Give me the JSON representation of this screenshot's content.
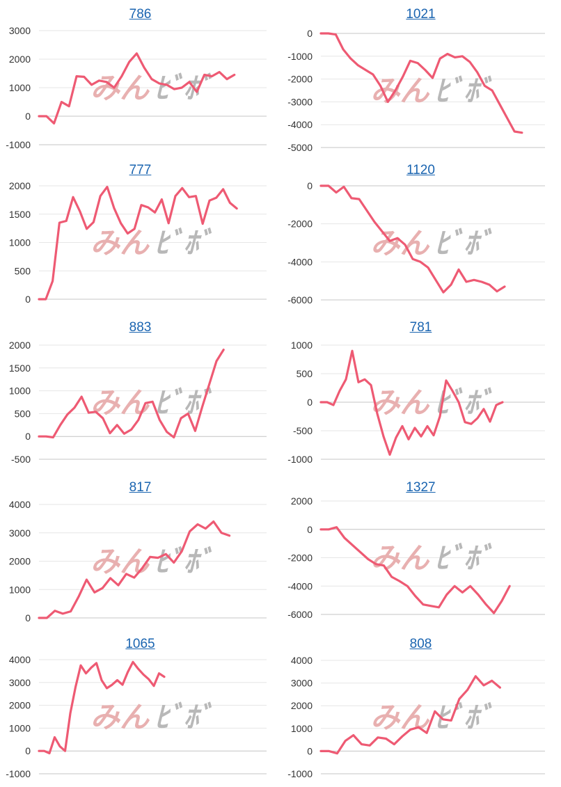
{
  "page": {
    "background": "#ffffff",
    "title_color": "#1a64b0"
  },
  "watermark": {
    "left": "みん",
    "right": "ﾋﾞﾎﾞ",
    "left_color": "#e8b0b0",
    "right_color": "#b8b8b8"
  },
  "chart_data": [
    {
      "type": "line",
      "title": "786",
      "ylim": [
        -1000,
        3000
      ],
      "y_ticks": [
        "3000",
        "2000",
        "1000",
        "0",
        "-1000"
      ],
      "series": [
        {
          "color": "#ee5a73",
          "values": [
            0,
            0,
            -250,
            500,
            350,
            1400,
            1380,
            1100,
            1250,
            1200,
            1000,
            1400,
            1900,
            2200,
            1700,
            1300,
            1150,
            1100,
            950,
            1000,
            1200,
            850,
            1450,
            1400,
            1550,
            1300,
            1450
          ]
        }
      ]
    },
    {
      "type": "line",
      "title": "1021",
      "ylim": [
        -5000,
        0
      ],
      "y_ticks": [
        "0",
        "-1000",
        "-2000",
        "-3000",
        "-4000",
        "-5000"
      ],
      "series": [
        {
          "color": "#ee5a73",
          "values": [
            0,
            0,
            -50,
            -700,
            -1100,
            -1400,
            -1600,
            -1800,
            -2300,
            -3000,
            -2500,
            -1900,
            -1200,
            -1300,
            -1600,
            -1950,
            -1100,
            -900,
            -1050,
            -1000,
            -1250,
            -1700,
            -2300,
            -2500,
            -3100,
            -3700,
            -4300,
            -4350
          ]
        }
      ]
    },
    {
      "type": "line",
      "title": "777",
      "ylim": [
        0,
        2000
      ],
      "y_ticks": [
        "2000",
        "1500",
        "1000",
        "500",
        "0"
      ],
      "series": [
        {
          "color": "#ee5a73",
          "values": [
            0,
            0,
            320,
            1350,
            1380,
            1800,
            1550,
            1240,
            1360,
            1820,
            1980,
            1610,
            1340,
            1160,
            1240,
            1660,
            1620,
            1530,
            1760,
            1340,
            1820,
            1960,
            1800,
            1820,
            1330,
            1740,
            1790,
            1940,
            1700,
            1600
          ]
        }
      ]
    },
    {
      "type": "line",
      "title": "1120",
      "ylim": [
        -6000,
        0
      ],
      "y_ticks": [
        "0",
        "-2000",
        "-4000",
        "-6000"
      ],
      "series": [
        {
          "color": "#ee5a73",
          "values": [
            0,
            0,
            -350,
            -50,
            -650,
            -700,
            -1300,
            -1900,
            -2400,
            -2900,
            -2750,
            -3100,
            -3850,
            -4000,
            -4300,
            -4950,
            -5600,
            -5200,
            -4400,
            -5050,
            -4950,
            -5050,
            -5200,
            -5550,
            -5300
          ]
        }
      ]
    },
    {
      "type": "line",
      "title": "883",
      "ylim": [
        -500,
        2000
      ],
      "y_ticks": [
        "2000",
        "1500",
        "1000",
        "500",
        "0",
        "-500"
      ],
      "series": [
        {
          "color": "#ee5a73",
          "values": [
            0,
            0,
            -20,
            250,
            480,
            630,
            870,
            520,
            540,
            400,
            70,
            250,
            60,
            150,
            360,
            730,
            760,
            360,
            100,
            -20,
            400,
            500,
            120,
            650,
            1150,
            1650,
            1900
          ]
        }
      ]
    },
    {
      "type": "line",
      "title": "781",
      "ylim": [
        -1000,
        1000
      ],
      "y_ticks": [
        "1000",
        "500",
        "0",
        "-500",
        "-1000"
      ],
      "series": [
        {
          "color": "#ee5a73",
          "values": [
            0,
            0,
            -50,
            200,
            400,
            900,
            350,
            400,
            300,
            -200,
            -600,
            -920,
            -620,
            -420,
            -650,
            -450,
            -600,
            -420,
            -580,
            -250,
            380,
            200,
            0,
            -350,
            -380,
            -280,
            -120,
            -340,
            -50,
            0
          ]
        }
      ]
    },
    {
      "type": "line",
      "title": "817",
      "ylim": [
        0,
        4000
      ],
      "y_ticks": [
        "4000",
        "3000",
        "2000",
        "1000",
        "0"
      ],
      "series": [
        {
          "color": "#ee5a73",
          "values": [
            0,
            0,
            250,
            150,
            230,
            750,
            1350,
            900,
            1050,
            1400,
            1150,
            1550,
            1420,
            1750,
            2150,
            2120,
            2250,
            1950,
            2350,
            3050,
            3300,
            3150,
            3400,
            3000,
            2900
          ]
        }
      ]
    },
    {
      "type": "line",
      "title": "1327",
      "ylim": [
        -6000,
        2000
      ],
      "y_ticks": [
        "2000",
        "0",
        "-2000",
        "-4000",
        "-6000"
      ],
      "series": [
        {
          "color": "#ee5a73",
          "values": [
            0,
            0,
            150,
            -600,
            -1100,
            -1600,
            -2100,
            -2450,
            -2550,
            -3350,
            -3650,
            -4000,
            -4700,
            -5300,
            -5400,
            -5500,
            -4600,
            -4000,
            -4450,
            -4000,
            -4600,
            -5300,
            -5900,
            -5050,
            -4000
          ]
        }
      ]
    },
    {
      "type": "line",
      "title": "1065",
      "ylim": [
        -1000,
        4000
      ],
      "y_ticks": [
        "4000",
        "3000",
        "2000",
        "1000",
        "0",
        "-1000"
      ],
      "series": [
        {
          "color": "#ee5a73",
          "values": [
            0,
            0,
            -100,
            600,
            200,
            0,
            1650,
            2800,
            3750,
            3400,
            3650,
            3850,
            3100,
            2750,
            2900,
            3100,
            2900,
            3450,
            3900,
            3600,
            3350,
            3150,
            2850,
            3400,
            3250
          ]
        }
      ]
    },
    {
      "type": "line",
      "title": "808",
      "ylim": [
        -1000,
        4000
      ],
      "y_ticks": [
        "4000",
        "3000",
        "2000",
        "1000",
        "0",
        "-1000"
      ],
      "series": [
        {
          "color": "#ee5a73",
          "values": [
            0,
            0,
            -100,
            450,
            700,
            300,
            250,
            600,
            550,
            300,
            650,
            950,
            1050,
            800,
            1750,
            1400,
            1350,
            2300,
            2700,
            3300,
            2900,
            3100,
            2800
          ]
        }
      ]
    }
  ]
}
